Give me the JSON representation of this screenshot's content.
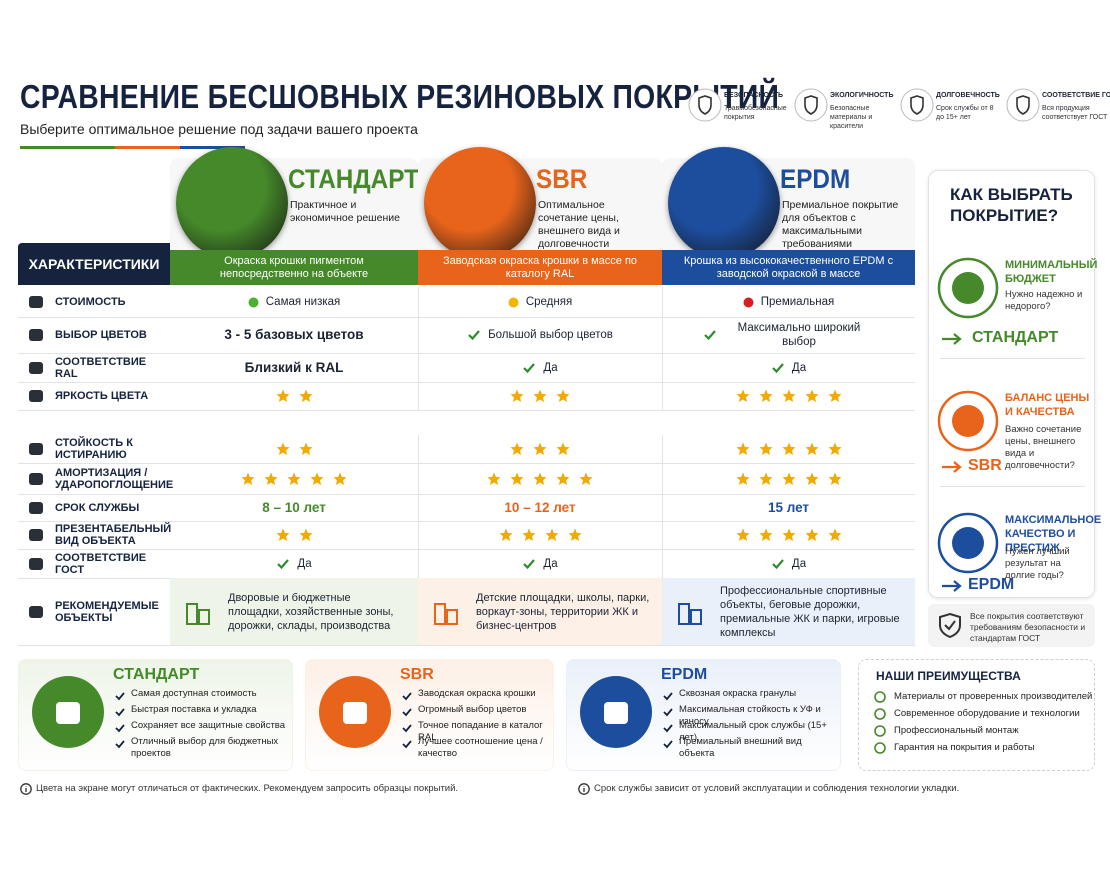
{
  "header": {
    "title": "СРАВНЕНИЕ БЕСШОВНЫХ РЕЗИНОВЫХ ПОКРЫТИЙ",
    "subtitle": "Выберите оптимальное решение под задачи вашего проекта"
  },
  "badges": [
    {
      "title": "БЕЗОПАСНОСТЬ",
      "text": "Травмобезопасные покрытия"
    },
    {
      "title": "ЭКОЛОГИЧНОСТЬ",
      "text": "Безопасные материалы и красители"
    },
    {
      "title": "ДОЛГОВЕЧНОСТЬ",
      "text": "Срок службы от 8 до 15+ лет"
    },
    {
      "title": "СООТВЕТСТВИЕ ГОСТ",
      "text": "Вся продукция соответствует ГОСТ"
    }
  ],
  "products": [
    {
      "name": "СТАНДАРТ",
      "description": "Практичное и экономичное решение",
      "method": "Окраска крошки пигментом непосредственно на объекте",
      "color": "#45892a"
    },
    {
      "name": "SBR",
      "description": "Оптимальное сочетание цены, внешнего вида и долговечности",
      "method": "Заводская окраска крошки в массе по каталогу RAL",
      "color": "#e8641b"
    },
    {
      "name": "EPDM",
      "description": "Премиальное покрытие для объектов с максимальными требованиями",
      "method": "Крошка из высококачественного EPDM с заводской окраской в массе",
      "color": "#1d4e9e"
    }
  ],
  "table": {
    "header": "ХАРАКТЕРИСТИКИ",
    "rows": [
      {
        "label": "СТОИМОСТЬ",
        "cells": [
          {
            "text": "Самая низкая",
            "dot": "#4caf30"
          },
          {
            "text": "Средняя",
            "dot": "#f2b705"
          },
          {
            "text": "Премиальная",
            "dot": "#d81e1e"
          }
        ]
      },
      {
        "label": "ВЫБОР ЦВЕТОВ",
        "cells": [
          {
            "text": "3 - 5 базовых цветов"
          },
          {
            "text": "Большой выбор цветов",
            "check": true
          },
          {
            "text": "Максимально широкий выбор",
            "check": true
          }
        ]
      },
      {
        "label": "СООТВЕТСТВИЕ RAL",
        "cells": [
          {
            "text": "Близкий к RAL"
          },
          {
            "text": "Да",
            "check": true
          },
          {
            "text": "Да",
            "check": true
          }
        ]
      },
      {
        "label": "ЯРКОСТЬ ЦВЕТА",
        "cells": [
          {
            "stars": 2
          },
          {
            "stars": 3
          },
          {
            "stars": 5
          }
        ]
      },
      {
        "label": "СТОЙКОСТЬ К ИСТИРАНИЮ",
        "cells": [
          {
            "stars": 2
          },
          {
            "stars": 3
          },
          {
            "stars": 5
          }
        ]
      },
      {
        "label": "АМОРТИЗАЦИЯ / УДАРОПОГЛОЩЕНИЕ",
        "cells": [
          {
            "stars": 5
          },
          {
            "stars": 5
          },
          {
            "stars": 5
          }
        ]
      },
      {
        "label": "СРОК СЛУЖБЫ",
        "cells": [
          {
            "text": "8 – 10 лет"
          },
          {
            "text": "10 – 12 лет"
          },
          {
            "text": "15 лет"
          }
        ]
      },
      {
        "label": "ПРЕЗЕНТАБЕЛЬНЫЙ ВИД ОБЪЕКТА",
        "cells": [
          {
            "stars": 2
          },
          {
            "stars": 4
          },
          {
            "stars": 5
          }
        ]
      },
      {
        "label": "СООТВЕТСТВИЕ ГОСТ",
        "cells": [
          {
            "text": "Да",
            "check": true
          },
          {
            "text": "Да",
            "check": true
          },
          {
            "text": "Да",
            "check": true
          }
        ]
      },
      {
        "label": "РЕКОМЕНДУЕМЫЕ ОБЪЕКТЫ",
        "cells": [
          {
            "text": "Дворовые и бюджетные площадки, хозяйственные зоны, дорожки, склады, производства"
          },
          {
            "text": "Детские площадки, школы, парки, воркаут-зоны, территории ЖК и бизнес-центров"
          },
          {
            "text": "Профессиональные спортивные объекты, беговые дорожки, премиальные ЖК и парки, игровые комплексы"
          }
        ]
      }
    ]
  },
  "guide": {
    "title": "КАК ВЫБРАТЬ ПОКРЫТИЕ?",
    "options": [
      {
        "title": "МИНИМАЛЬНЫЙ БЮДЖЕТ",
        "question": "Нужно надежно и недорого?",
        "result": "СТАНДАРТ"
      },
      {
        "title": "БАЛАНС ЦЕНЫ И КАЧЕСТВА",
        "question": "Важно сочетание цены, внешнего вида и долговечности?",
        "result": "SBR"
      },
      {
        "title": "МАКСИМАЛЬНОЕ КАЧЕСТВО И ПРЕСТИЖ",
        "question": "Нужен лучший результат на долгие годы?",
        "result": "EPDM"
      }
    ],
    "note": "Все покрытия соответствуют требованиям безопасности и стандартам ГОСТ"
  },
  "cards": [
    {
      "name": "СТАНДАРТ",
      "items": [
        "Самая доступная стоимость",
        "Быстрая поставка и укладка",
        "Сохраняет все защитные свойства",
        "Отличный выбор для бюджетных проектов"
      ]
    },
    {
      "name": "SBR",
      "items": [
        "Заводская окраска крошки",
        "Огромный выбор цветов",
        "Точное попадание в каталог RAL",
        "Лучшее соотношение цена / качество"
      ]
    },
    {
      "name": "EPDM",
      "items": [
        "Сквозная окраска гранулы",
        "Максимальная стойкость к УФ и износу",
        "Максимальный срок службы (15+ лет)",
        "Премиальный внешний вид объекта"
      ]
    }
  ],
  "advantages": {
    "title": "НАШИ ПРЕИМУЩЕСТВА",
    "items": [
      "Материалы от проверенных производителей",
      "Современное оборудование и технологии",
      "Профессиональный монтаж",
      "Гарантия на покрытия и работы"
    ]
  },
  "footer": [
    "Цвета на экране могут отличаться от фактических. Рекомендуем запросить образцы покрытий.",
    "Срок службы зависит от условий эксплуатации и соблюдения технологии укладки."
  ]
}
